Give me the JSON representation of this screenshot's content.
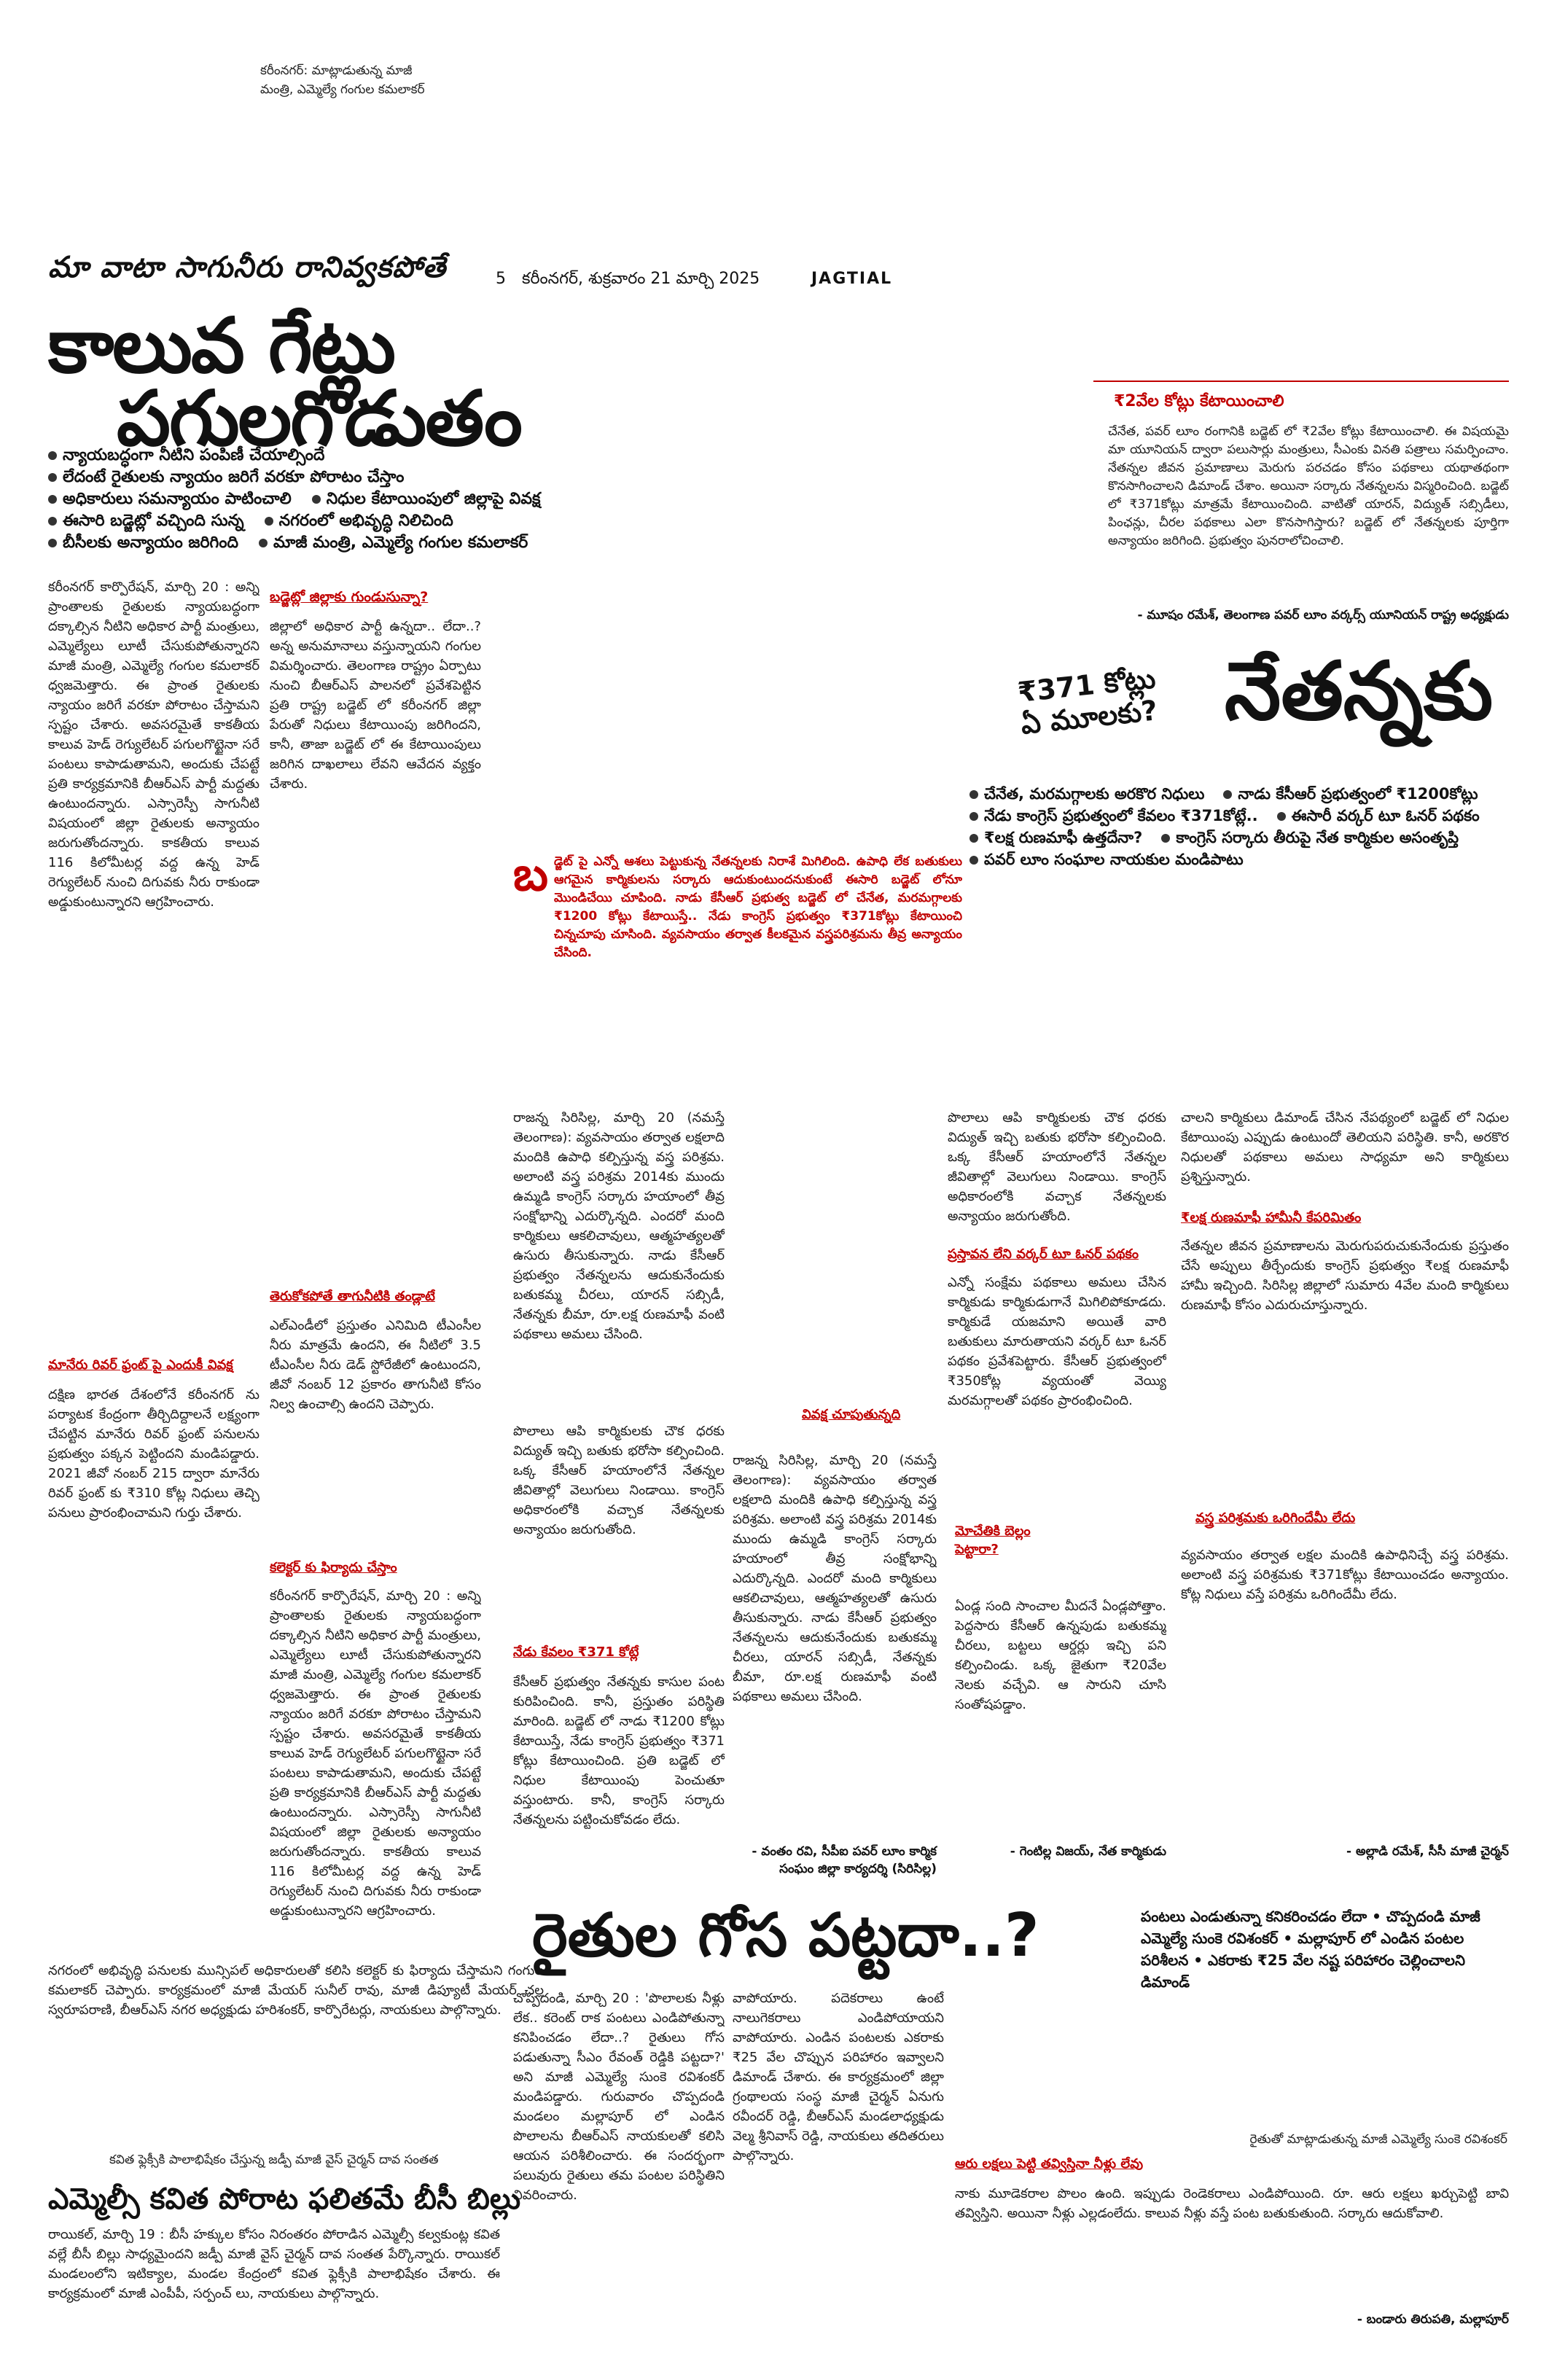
{
  "top_caption": {
    "line1": "కరీంనగర్: మాట్లాడుతున్న మాజీ",
    "line2": "మంత్రి, ఎమ్మెల్యే గంగుల కమలాకర్"
  },
  "header": {
    "kicker": "మా వాటా సాగునీరు రానివ్వకపోతే",
    "page_no": "5",
    "dateline": "కరీంనగర్, శుక్రవారం 21 మార్చి 2025",
    "edition": "JAGTIAL"
  },
  "lead": {
    "headline1": "కాలువ గేట్లు",
    "headline2": "పగులగొడుతం",
    "bullets": [
      "న్యాయబద్ధంగా నీటిని పంపిణీ చేయాల్సిందే",
      "లేదంటే రైతులకు న్యాయం జరిగే వరకూ పోరాటం చేస్తాం",
      "అధికారులు సమన్యాయం పాటించాలి",
      "నిధుల కేటాయింపులో జిల్లాపై వివక్ష",
      "ఈసారి బడ్జెట్లో వచ్చింది సున్న",
      "నగరంలో అభివృద్ధి నిలిచింది",
      "బీసీలకు అన్యాయం జరిగింది",
      "మాజీ మంత్రి, ఎమ్మెల్యే గంగుల కమలాకర్"
    ],
    "col1_text": "కరీంనగర్ కార్పొరేషన్, మార్చి 20 : అన్ని ప్రాంతాలకు రైతులకు న్యాయబద్ధంగా దక్కాల్సిన నీటిని అధికార పార్టీ మంత్రులు, ఎమ్మెల్యేలు లూటీ చేసుకుపోతున్నారని మాజీ మంత్రి, ఎమ్మెల్యే గంగుల కమలాకర్ ధ్వజమెత్తారు. ఈ ప్రాంత రైతులకు న్యాయం జరిగే వరకూ పోరాటం చేస్తామని స్పష్టం చేశారు. అవసరమైతే కాకతీయ కాలువ హెడ్ రెగ్యులేటర్ పగులగొట్టైనా సరే పంటలు కాపాడుతామని, అందుకు చేపట్టే ప్రతి కార్యక్రమానికి బీఆర్ఎస్ పార్టీ మద్దతు ఉంటుందన్నారు. ఎస్సారెస్పీ సాగునీటి విషయంలో జిల్లా రైతులకు అన్యాయం జరుగుతోందన్నారు. కాకతీయ కాలువ 116 కిలోమీటర్ల వద్ద ఉన్న హెడ్ రెగ్యులేటర్ నుంచి దిగువకు నీరు రాకుండా అడ్డుకుంటున్నారని ఆగ్రహించారు.",
    "col1_sub1": "మానేరు రివర్ ఫ్రంట్ పై ఎందుకీ వివక్ష",
    "col1_text2": "దక్షిణ భారత దేశంలోనే కరీంనగర్ ను పర్యాటక కేంద్రంగా తీర్చిదిద్దాలనే లక్ష్యంగా చేపట్టిన మానేరు రివర్ ఫ్రంట్ పనులను ప్రభుత్వం పక్కన పెట్టిందని మండిపడ్డారు. 2021 జీవో నంబర్ 215 ద్వారా మానేరు రివర్ ఫ్రంట్ కు ₹310 కోట్ల నిధులు తెచ్చి పనులు ప్రారంభించామని గుర్తు చేశారు.",
    "col2_sub1": "బడ్జెట్లో జిల్లాకు గుండుసున్నా?",
    "col2_text": "జిల్లాలో అధికార పార్టీ ఉన్నదా.. లేదా..? అన్న అనుమానాలు వస్తున్నాయని గంగుల విమర్శించారు. తెలంగాణ రాష్ట్రం ఏర్పాటు నుంచి బీఆర్ఎస్ పాలనలో ప్రవేశపెట్టిన ప్రతి రాష్ట్ర బడ్జెట్ లో కరీంనగర్ జిల్లా పేరుతో నిధులు కేటాయింపు జరిగిందని, కానీ, తాజా బడ్జెట్ లో ఈ కేటాయింపులు జరిగిన దాఖలాలు లేవని ఆవేదన వ్యక్తం చేశారు.",
    "col2_sub2": "తెరుకోకపోతే తాగునీటికి తండ్లాటే",
    "col2_text2": "ఎల్ఎండీలో ప్రస్తుతం ఎనిమిది టీఎంసీల నీరు మాత్రమే ఉందని, ఈ నీటిలో 3.5 టీఎంసీల నీరు డెడ్ స్టోరేజీలో ఉంటుందని, జీవో నంబర్ 12 ప్రకారం తాగునీటి కోసం నిల్వ ఉంచాల్సి ఉందని చెప్పారు.",
    "col2_sub3": "కలెక్టర్ కు ఫిర్యాదు చేస్తాం",
    "bottom_text": "నగరంలో అభివృద్ధి పనులకు మున్సిపల్ అధికారులతో కలిసి కలెక్టర్ కు ఫిర్యాదు చేస్తామని గంగుల కమలాకర్ చెప్పారు. కార్యక్రమంలో మాజీ మేయర్ సునీల్ రావు, మాజీ డిప్యూటీ మేయర్ చల్ల స్వరూపరాణి, బీఆర్ఎస్ నగర అధ్యక్షుడు హరిశంకర్, కార్పొరేటర్లు, నాయకులు పాల్గొన్నారు."
  },
  "weavers": {
    "kicker": "₹2వేల కోట్లు కేటాయించాలి",
    "quote": "చేనేత, పవర్ లూం రంగానికి బడ్జెట్ లో ₹2వేల కోట్లు కేటాయించాలి. ఈ విషయమై మా యూనియన్ ద్వారా పలుసార్లు మంత్రులు, సీఎంకు వినతి పత్రాలు సమర్పించాం. నేతన్నల జీవన ప్రమాణాలు మెరుగు పరచడం కోసం పథకాలు యథాతథంగా కొనసాగించాలని డిమాండ్ చేశాం. అయినా సర్కారు నేతన్నలను విస్మరించింది. బడ్జెట్ లో ₹371కోట్లు మాత్రమే కేటాయించింది. వాటితో యారన్, విద్యుత్ సబ్సిడీలు, పింఛన్లు, చీరల పథకాలు ఎలా కొనసాగిస్తారు? బడ్జెట్ లో నేతన్నలకు పూర్తిగా అన్యాయం జరిగింది. ప్రభుత్వం పునరాలోచించాలి.",
    "quote_author": "- మూషం రమేశ్, తెలంగాణ పవర్ లూం వర్కర్స్ యూనియన్ రాష్ట్ర అధ్యక్షుడు",
    "badge1": "₹371 కోట్లు",
    "badge2": "ఏ మూలకు?",
    "headline": "నేతన్నకు",
    "bullets": [
      "చేనేత, మరమగ్గాలకు అరకొర నిధులు",
      "నాడు కేసీఆర్ ప్రభుత్వంలో ₹1200కోట్లు",
      "నేడు కాంగ్రెస్ ప్రభుత్వంలో కేవలం ₹371కోట్లే..",
      "ఈసారీ వర్కర్ టూ ఓనర్ పథకం",
      "₹లక్ష రుణమాఫీ ఉత్తదేనా?",
      "కాంగ్రెస్ సర్కారు తీరుపై నేత కార్మికుల అసంతృప్తి",
      "పవర్ లూం సంఘాల నాయకుల మండిపాటు"
    ],
    "drop_letter": "బ",
    "intro_highlight": "డ్జెట్ పై ఎన్నో ఆశలు పెట్టుకున్న నేతన్నలకు నిరాశే మిగిలింది. ఉపాధి లేక బతుకులు ఆగమైన కార్మికులను సర్కారు ఆదుకుంటుందనుకుంటే ఈసారి బడ్జెట్ లోనూ మొండిచేయి చూపింది. నాడు కేసీఆర్ ప్రభుత్వ బడ్జెట్ లో చేనేత, మరమగ్గాలకు ₹1200 కోట్లు కేటాయిస్తే.. నేడు కాంగ్రెస్ ప్రభుత్వం ₹371కోట్లు కేటాయించి చిన్నచూపు చూసింది. వ్యవసాయం తర్వాత కీలకమైన వస్త్రపరిశ్రమను తీవ్ర అన్యాయం చేసింది.",
    "col1_text": "రాజన్న సిరిసిల్ల, మార్చి 20 (నమస్తే తెలంగాణ): వ్యవసాయం తర్వాత లక్షలాది మందికి ఉపాధి కల్పిస్తున్న వస్త్ర పరిశ్రమ. అలాంటి వస్త్ర పరిశ్రమ 2014కు ముందు ఉమ్మడి కాంగ్రెస్ సర్కారు హయాంలో తీవ్ర సంక్షోభాన్ని ఎదుర్కొన్నది. ఎందరో మంది కార్మికులు ఆకలిచావులు, ఆత్మహత్యలతో ఉసురు తీసుకున్నారు. నాడు కేసీఆర్ ప్రభుత్వం నేతన్నలను ఆదుకునేందుకు బతుకమ్మ చీరలు, యారన్ సబ్సిడీ, నేతన్నకు బీమా, రూ.లక్ష రుణమాఫీ వంటి పథకాలు అమలు చేసింది.",
    "sub1": "వివక్ష చూపుతున్నది",
    "sub2": "నేడు కేవలం ₹371 కోట్లే",
    "col2_text": "కేసీఆర్ ప్రభుత్వం నేతన్నకు కాసుల పంట కురిపించింది. కానీ, ప్రస్తుతం పరిస్థితి మారింది. బడ్జెట్ లో నాడు ₹1200 కోట్లు కేటాయిస్తే, నేడు కాంగ్రెస్ ప్రభుత్వం ₹371 కోట్లు కేటాయించింది. ప్రతి బడ్జెట్ లో నిధుల కేటాయింపు పెంచుతూ వస్తుంటారు. కానీ, కాంగ్రెస్ సర్కారు నేతన్నలను పట్టించుకోవడం లేదు.",
    "quote2_author": "- వంతం రవి, సీపీఐ పవర్ లూం కార్మిక సంఘం జిల్లా కార్యదర్శి (సిరిసిల్ల)",
    "col3_text": "పొలాలు ఆపి కార్మికులకు చౌక ధరకు విద్యుత్ ఇచ్చి బతుకు భరోసా కల్పించింది. ఒక్క కేసీఆర్ హయాంలోనే నేతన్నల జీవితాల్లో వెలుగులు నిండాయి. కాంగ్రెస్ అధికారంలోకి వచ్చాక నేతన్నలకు అన్యాయం జరుగుతోంది.",
    "sub3": "ప్రస్తావన లేని వర్కర్ టూ ఓనర్ పథకం",
    "col3_text2": "ఎన్నో సంక్షేమ పథకాలు అమలు చేసిన కార్మికుడు కార్మికుడుగానే మిగిలిపోకూడదు. కార్మికుడే యజమాని అయితే వారి బతుకులు మారుతాయని వర్కర్ టూ ఓనర్ పథకం ప్రవేశపెట్టారు. కేసీఆర్ ప్రభుత్వంలో ₹350కోట్ల వ్యయంతో వెయ్యి మరమగ్గాలతో పథకం ప్రారంభించింది.",
    "sub4": "మోచేతికి బెల్లం పెట్టారా?",
    "col3_text3": "ఏండ్ల సంది సాంచాల మీదనే ఏండ్లపోత్తాం. పెద్దసారు కేసీఆర్ ఉన్నపుడు బతుకమ్మ చీరలు, బట్టలు ఆర్డర్లు ఇచ్చి పని కల్పించిండు. ఒక్క జైతుగా ₹20వేల నెలకు వచ్చేవి. ఆ సారుని చూసి సంతోషపడ్డాం.",
    "quote3_author": "- గెంటిల్ల విజయ్, నేత కార్మికుడు",
    "col4_text": "చాలని కార్మికులు డిమాండ్ చేసిన నేపథ్యంలో బడ్జెట్ లో నిధుల కేటాయింపు ఎప్పుడు ఉంటుందో తెలియని పరిస్థితి. కానీ, అరకొర నిధులతో పథకాలు అమలు సాధ్యమా అని కార్మికులు ప్రశ్నిస్తున్నారు.",
    "sub5": "₹లక్ష రుణమాఫీ హామీనీ కేపరిమితం",
    "col4_text2": "నేతన్నల జీవన ప్రమాణాలను మెరుగుపరుచుకునేందుకు ప్రస్తుతం చేసే అప్పులు తీర్చేందుకు కాంగ్రెస్ ప్రభుత్వం ₹లక్ష రుణమాఫీ హామీ ఇచ్చింది. సిరిసిల్ల జిల్లాలో సుమారు 4వేల మంది కార్మికులు రుణమాఫీ కోసం ఎదురుచూస్తున్నారు.",
    "sub6": "వస్త్ర పరిశ్రమకు ఒరిగిందేమీ లేదు",
    "col4_text3": "వ్యవసాయం తర్వాత లక్షల మందికి ఉపాధినిచ్చే వస్త్ర పరిశ్రమ. అలాంటి వస్త్ర పరిశ్రమకు ₹371కోట్లు కేటాయించడం అన్యాయం. కోట్ల నిధులు వస్తే పరిశ్రమ ఒరిగిందేమీ లేదు.",
    "quote4_author": "- అల్లాడి రమేశ్, సీసీ మాజీ చైర్మన్"
  },
  "farmers": {
    "headline": "రైతుల గోస పట్టదా..?",
    "deck": "పంటలు ఎండుతున్నా కనికరించడం లేదా • చొప్పదండి మాజీ ఎమ్మెల్యే సుంకె రవిశంకర్ • మల్లాపూర్ లో ఎండిన పంటల పరిశీలన • ఎకరాకు ₹25 వేల నష్ట పరిహారం చెల్లించాలని డిమాండ్",
    "col1_text": "చొప్పదండి, మార్చి 20 : 'పొలాలకు నీళ్లు లేక.. కరెంట్ రాక పంటలు ఎండిపోతున్నా కనిపించడం లేదా..? రైతులు గోస పడుతున్నా సీఎం రేవంత్ రెడ్డికి పట్టదా?' అని మాజీ ఎమ్మెల్యే సుంకె రవిశంకర్ మండిపడ్డారు. గురువారం చొప్పదండి మండలం మల్లాపూర్ లో ఎండిన పొలాలను బీఆర్ఎస్ నాయకులతో కలిసి ఆయన పరిశీలించారు. ఈ సందర్భంగా పలువురు రైతులు తమ పంటల పరిస్థితిని వివరించారు.",
    "col2_text": "వాపోయారు. పదెకరాలు ఉంటే నాలుగెకరాలు ఎండిపోయాయని వాపోయారు. ఎండిన పంటలకు ఎకరాకు ₹25 వేల చొప్పున పరిహారం ఇవ్వాలని డిమాండ్ చేశారు. ఈ కార్యక్రమంలో జిల్లా గ్రంథాలయ సంస్థ మాజీ చైర్మన్ ఏనుగు రవీందర్ రెడ్డి, బీఆర్ఎస్ మండలాధ్యక్షుడు వెల్మ శ్రీనివాస్ రెడ్డి, నాయకులు తదితరులు పాల్గొన్నారు.",
    "caption_left": "రైతుతో మాట్లాడుతున్న మాజీ ఎమ్మెల్యే సుంకె రవిశంకర్",
    "sub1": "ఆరు లక్షలు పెట్టి తవ్విస్తినా నీళ్లు లేవు",
    "col3_text": "నాకు మూడెకరాల పొలం ఉంది. ఇప్పుడు రెండెకరాలు ఎండిపోయింది. రూ. ఆరు లక్షలు ఖర్చుపెట్టి బావి తవ్విస్తిని. అయినా నీళ్లు ఎల్లడంలేదు. కాలువ నీళ్లు వస్తే పంట బతుకుతుంది. సర్కారు ఆదుకోవాలి.",
    "quote_author": "- బండారు తిరుపతి, మల్లాపూర్"
  },
  "kavitha": {
    "caption": "కవిత ఫ్లెక్సీకి పాలాభిషేకం చేస్తున్న జడ్పీ మాజీ వైస్ చైర్మన్ దావ సంతత",
    "headline": "ఎమ్మెల్సీ కవిత పోరాట ఫలితమే బీసీ బిల్లు",
    "text": "రాయికల్, మార్చి 19 : బీసీ హక్కుల కోసం నిరంతరం పోరాడిన ఎమ్మెల్సీ కల్వకుంట్ల కవిత వల్లే బీసీ బిల్లు సాధ్యమైందని జడ్పీ మాజీ వైస్ చైర్మన్ దావ సంతత పేర్కొన్నారు. రాయికల్ మండలంలోని ఇటిక్యాల, మండల కేంద్రంలో కవిత ఫ్లెక్సీకి పాలాభిషేకం చేశారు. ఈ కార్యక్రమంలో మాజీ ఎంపీపీ, సర్పంచ్ లు, నాయకులు పాల్గొన్నారు."
  }
}
